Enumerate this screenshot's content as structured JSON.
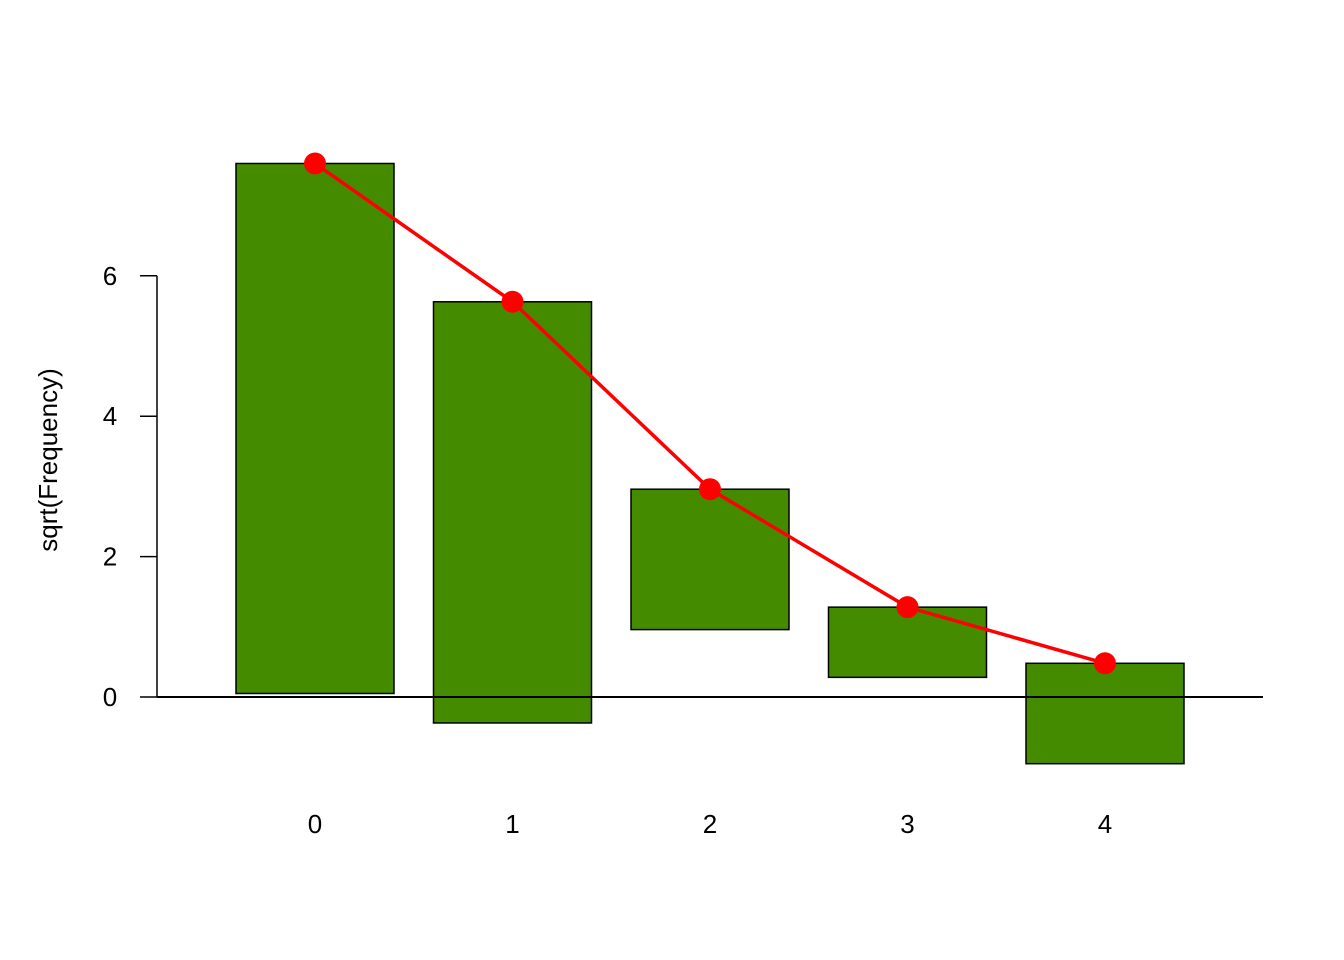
{
  "chart_data": {
    "type": "bar",
    "subtype": "hanging-rootogram",
    "categories": [
      "0",
      "1",
      "2",
      "3",
      "4"
    ],
    "series": [
      {
        "values": [
          7.55,
          6.0,
          2.0,
          1.0,
          1.43
        ],
        "kind": "hanging-bars",
        "color": "#458B00"
      },
      {
        "values": [
          7.6,
          5.63,
          2.96,
          1.28,
          0.48
        ],
        "kind": "line-points",
        "color": "#FF0000"
      }
    ],
    "xlabel": "",
    "ylabel": "sqrt(Frequency)",
    "yticks": [
      0,
      2,
      4,
      6
    ],
    "ylim": [
      -1.2,
      8.2
    ],
    "reference_line": 0,
    "grid": false,
    "legend": "none"
  }
}
